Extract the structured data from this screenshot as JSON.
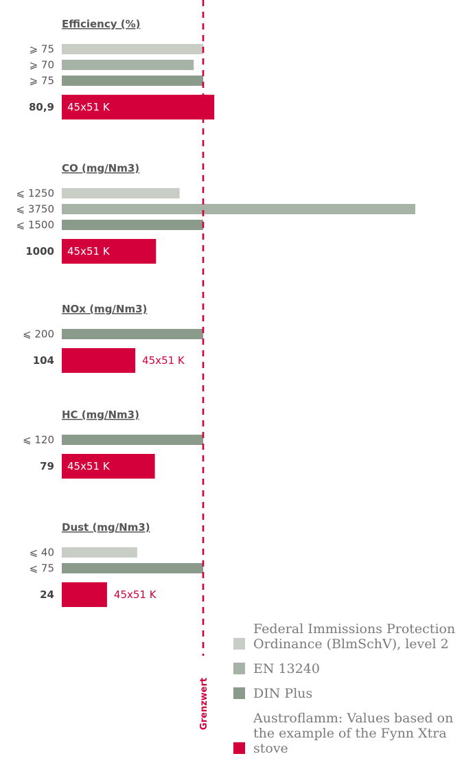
{
  "threshold_label": "Grenzwert",
  "colors": {
    "BImSchV": "#c8cdc6",
    "EN13240": "#a8b3a7",
    "DINPlus": "#8a9b8c",
    "Austroflamm": "#d4003b",
    "threshold": "#d4003b"
  },
  "chart_data": [
    {
      "type": "bar",
      "title": "Efficiency (%)",
      "bars": [
        {
          "series": "BImSchV",
          "label": "⩾ 75",
          "value": 75
        },
        {
          "series": "EN13240",
          "label": "⩾ 70",
          "value": 70
        },
        {
          "series": "DINPlus",
          "label": "⩾ 75",
          "value": 75
        },
        {
          "series": "Austroflamm",
          "label": "80,9",
          "value": 80.9,
          "bar_text": "45x51 K"
        }
      ]
    },
    {
      "type": "bar",
      "title": "CO (mg/Nm3)",
      "bars": [
        {
          "series": "BImSchV",
          "label": "⩽ 1250",
          "value": 1250
        },
        {
          "series": "EN13240",
          "label": "⩽ 3750",
          "value": 3750
        },
        {
          "series": "DINPlus",
          "label": "⩽ 1500",
          "value": 1500
        },
        {
          "series": "Austroflamm",
          "label": "1000",
          "value": 1000,
          "bar_text": "45x51 K"
        }
      ]
    },
    {
      "type": "bar",
      "title": "NOx (mg/Nm3)",
      "bars": [
        {
          "series": "DINPlus",
          "label": "⩽ 200",
          "value": 200
        },
        {
          "series": "Austroflamm",
          "label": "104",
          "value": 104,
          "bar_text": "45x51 K"
        }
      ]
    },
    {
      "type": "bar",
      "title": "HC (mg/Nm3)",
      "bars": [
        {
          "series": "DINPlus",
          "label": "⩽ 120",
          "value": 120
        },
        {
          "series": "Austroflamm",
          "label": "79",
          "value": 79,
          "bar_text": "45x51 K"
        }
      ]
    },
    {
      "type": "bar",
      "title": "Dust (mg/Nm3)",
      "bars": [
        {
          "series": "BImSchV",
          "label": "⩽ 40",
          "value": 40
        },
        {
          "series": "DINPlus",
          "label": "⩽ 75",
          "value": 75
        },
        {
          "series": "Austroflamm",
          "label": "24",
          "value": 24,
          "bar_text": "45x51 K"
        }
      ]
    }
  ],
  "legend": [
    {
      "series": "BImSchV",
      "label": "Federal Immissions Protection Ordinance (BlmSchV), level 2"
    },
    {
      "series": "EN13240",
      "label": "EN 13240"
    },
    {
      "series": "DINPlus",
      "label": "DIN Plus"
    },
    {
      "series": "Austroflamm",
      "label": "Austroflamm: Values based on the example of the Fynn Xtra stove"
    }
  ]
}
